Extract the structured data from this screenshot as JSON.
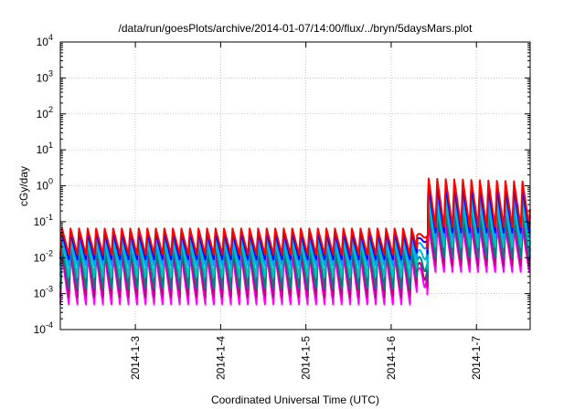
{
  "chart_data": {
    "type": "line",
    "title": "/data/run/goesPlots/archive/2014-01-07/14:00/flux/../bryn/5daysMars.plot",
    "xlabel": "Coordinated Universal Time (UTC)",
    "ylabel": "cGy/day",
    "xlim_days_from_2014_01_02": [
      0.12,
      5.63
    ],
    "y_scale": "log",
    "ylim": [
      0.0001,
      10000
    ],
    "grid": true,
    "legend": "none",
    "x_ticks": [
      {
        "label": "2014-1-3",
        "day": 1
      },
      {
        "label": "2014-1-4",
        "day": 2
      },
      {
        "label": "2014-1-5",
        "day": 3
      },
      {
        "label": "2014-1-6",
        "day": 4
      },
      {
        "label": "2014-1-7",
        "day": 5
      }
    ],
    "y_ticks": [
      {
        "base": "10",
        "exp": "-4",
        "value": 0.0001
      },
      {
        "base": "10",
        "exp": "-3",
        "value": 0.001
      },
      {
        "base": "10",
        "exp": "-2",
        "value": 0.01
      },
      {
        "base": "10",
        "exp": "-1",
        "value": 0.1
      },
      {
        "base": "10",
        "exp": "0",
        "value": 1
      },
      {
        "base": "10",
        "exp": "1",
        "value": 10
      },
      {
        "base": "10",
        "exp": "2",
        "value": 100
      },
      {
        "base": "10",
        "exp": "3",
        "value": 1000
      },
      {
        "base": "10",
        "exp": "4",
        "value": 10000
      }
    ],
    "period_days": 0.1,
    "event_day": 4.42,
    "series": [
      {
        "color": "#ff00ff",
        "peak_quiet": 0.012,
        "trough_quiet": 0.0005,
        "peak_event": 0.08,
        "trough_event": 0.004
      },
      {
        "color": "#c00080",
        "peak_quiet": 0.016,
        "trough_quiet": 0.0008,
        "peak_event": 0.12,
        "trough_event": 0.006
      },
      {
        "color": "#008080",
        "peak_quiet": 0.022,
        "trough_quiet": 0.0014,
        "peak_event": 0.18,
        "trough_event": 0.01
      },
      {
        "color": "#00c0c0",
        "peak_quiet": 0.03,
        "trough_quiet": 0.003,
        "peak_event": 0.35,
        "trough_event": 0.02
      },
      {
        "color": "#00a0ff",
        "peak_quiet": 0.04,
        "trough_quiet": 0.006,
        "peak_event": 0.6,
        "trough_event": 0.035
      },
      {
        "color": "#0000ff",
        "peak_quiet": 0.05,
        "trough_quiet": 0.009,
        "peak_event": 1.0,
        "trough_event": 0.05
      },
      {
        "color": "#ff0000",
        "peak_quiet": 0.065,
        "trough_quiet": 0.012,
        "peak_event": 1.6,
        "trough_event": 0.07
      }
    ]
  }
}
